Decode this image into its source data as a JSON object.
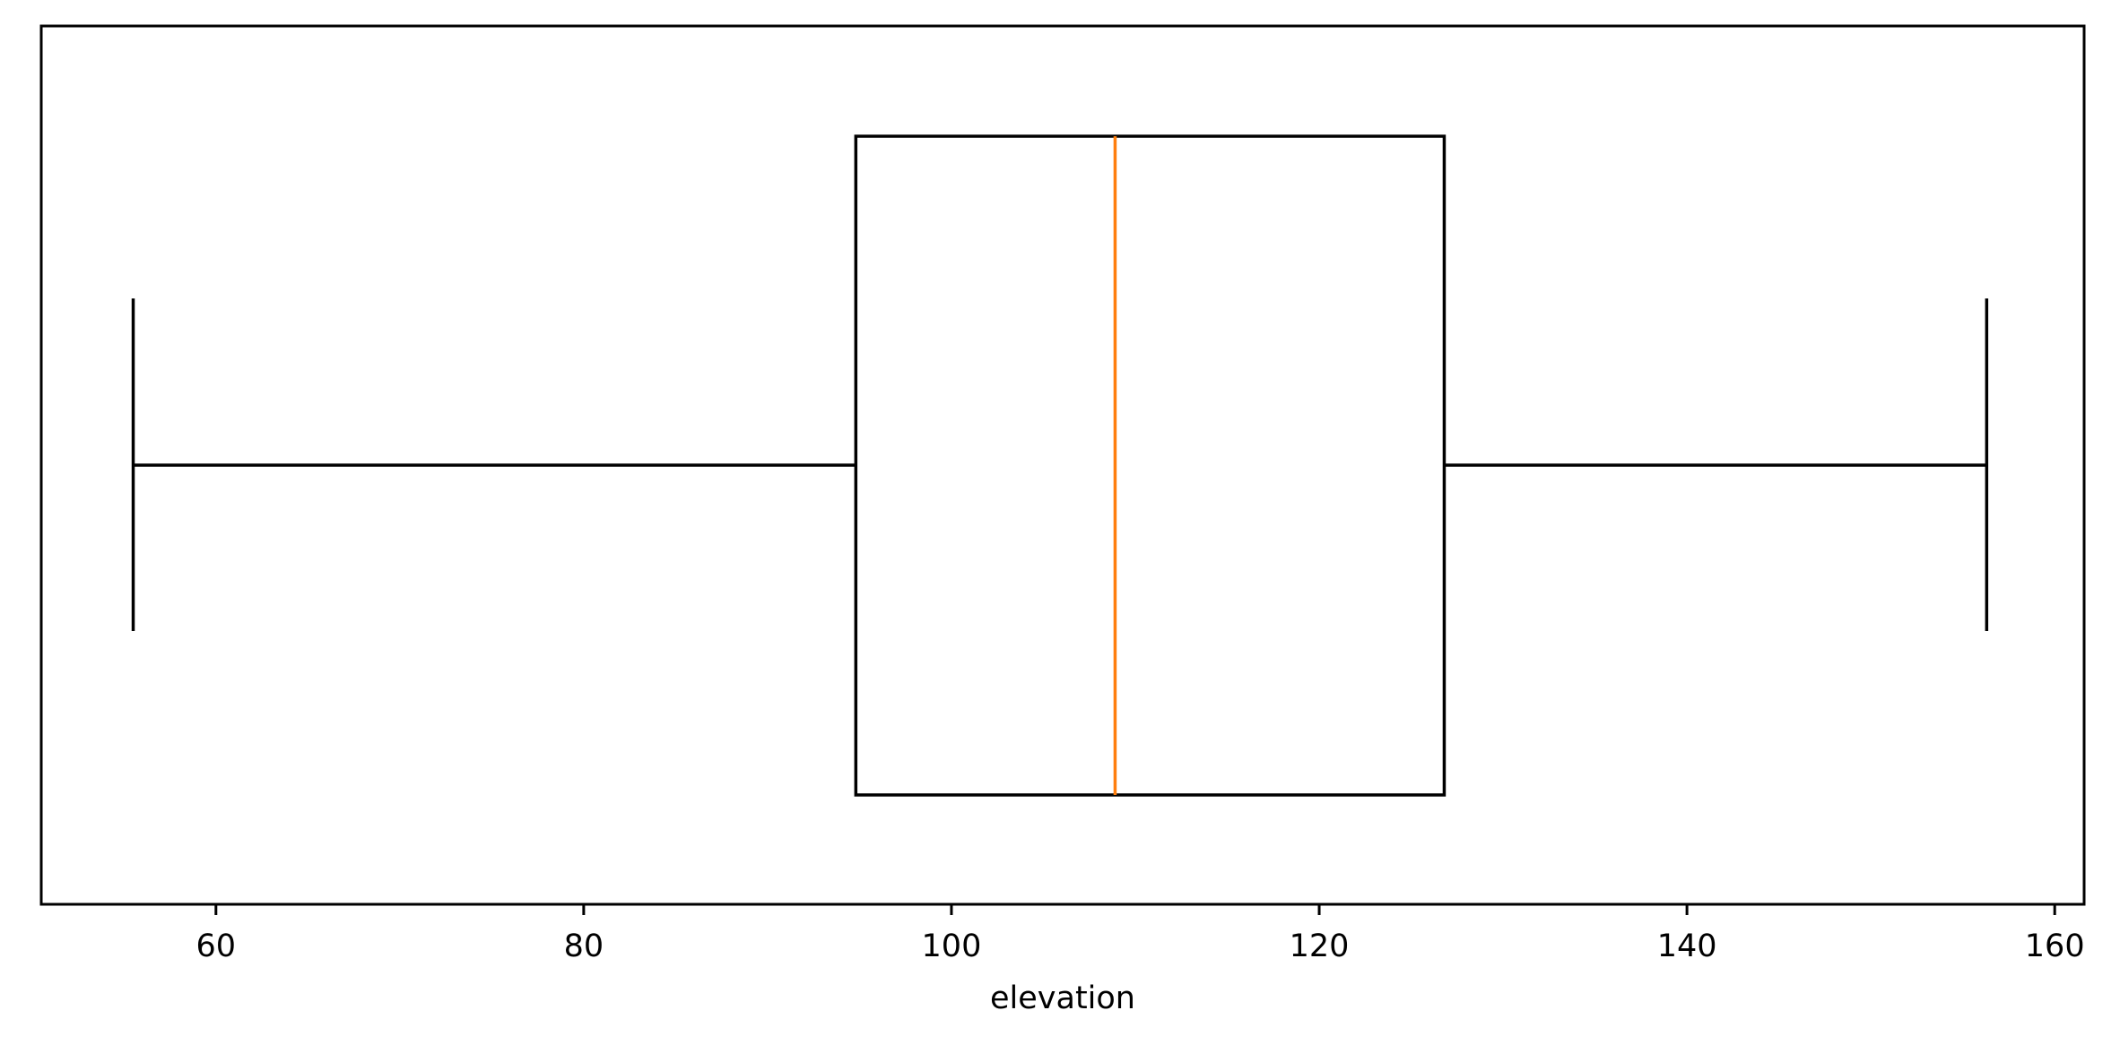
{
  "chart_data": {
    "type": "boxplot",
    "orientation": "horizontal",
    "xlabel": "elevation",
    "xlim": [
      50.5,
      161.6
    ],
    "ticks": [
      {
        "value": 60,
        "label": "60"
      },
      {
        "value": 80,
        "label": "80"
      },
      {
        "value": 100,
        "label": "100"
      },
      {
        "value": 120,
        "label": "120"
      },
      {
        "value": 140,
        "label": "140"
      },
      {
        "value": 160,
        "label": "160"
      }
    ],
    "box": {
      "whisker_low": 55.5,
      "q1": 94.8,
      "median": 108.9,
      "q3": 126.8,
      "whisker_high": 156.3
    },
    "grid": false,
    "colors": {
      "box": "#000000",
      "median": "#ff7f0e",
      "axes": "#000000"
    }
  }
}
